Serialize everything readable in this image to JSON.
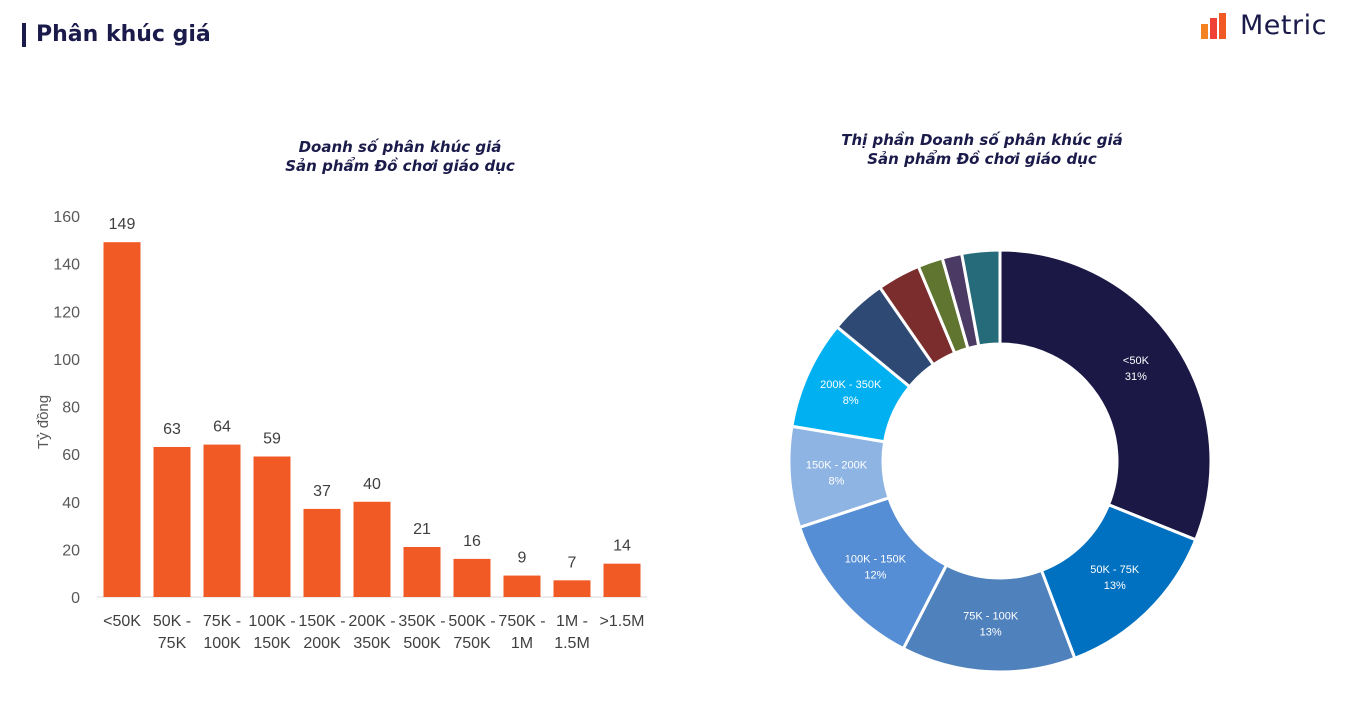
{
  "header": {
    "title": "Phân khúc giá"
  },
  "logo": {
    "text": "Metric",
    "colors": [
      "#f58220",
      "#ef4136",
      "#f15a24"
    ]
  },
  "chart_data": [
    {
      "type": "bar",
      "title_line1": "Doanh số phân khúc giá",
      "title_line2": "Sản phẩm Đồ chơi giáo dục",
      "ylabel": "Tỷ đồng",
      "ylim": [
        0,
        160
      ],
      "yticks": [
        0,
        20,
        40,
        60,
        80,
        100,
        120,
        140,
        160
      ],
      "categories": [
        [
          "<50K"
        ],
        [
          "50K -",
          "75K"
        ],
        [
          "75K -",
          "100K"
        ],
        [
          "100K -",
          "150K"
        ],
        [
          "150K -",
          "200K"
        ],
        [
          "200K -",
          "350K"
        ],
        [
          "350K -",
          "500K"
        ],
        [
          "500K -",
          "750K"
        ],
        [
          "750K -",
          "1M"
        ],
        [
          "1M -",
          "1.5M"
        ],
        [
          ">1.5M"
        ]
      ],
      "values": [
        149,
        63,
        64,
        59,
        37,
        40,
        21,
        16,
        9,
        7,
        14
      ],
      "bar_color": "#f15a24",
      "grid": false
    },
    {
      "type": "pie",
      "subtype": "donut",
      "title_line1": "Thị phần Doanh số phân khúc giá",
      "title_line2": "Sản phẩm Đồ chơi giáo dục",
      "slices": [
        {
          "label": "<50K",
          "pct_label": "31%",
          "value": 31.0,
          "color": "#1b1845",
          "show_label": true
        },
        {
          "label": "50K - 75K",
          "pct_label": "13%",
          "value": 13.1,
          "color": "#0070c0",
          "show_label": true
        },
        {
          "label": "75K - 100K",
          "pct_label": "13%",
          "value": 13.3,
          "color": "#4f81bd",
          "show_label": true
        },
        {
          "label": "100K - 150K",
          "pct_label": "12%",
          "value": 12.3,
          "color": "#558ed5",
          "show_label": true
        },
        {
          "label": "150K - 200K",
          "pct_label": "8%",
          "value": 7.7,
          "color": "#8eb4e3",
          "show_label": true
        },
        {
          "label": "200K - 350K",
          "pct_label": "8%",
          "value": 8.3,
          "color": "#00b0f0",
          "show_label": true
        },
        {
          "label": "350K - 500K",
          "pct_label": "",
          "value": 4.4,
          "color": "#2e4a74",
          "show_label": false
        },
        {
          "label": "500K - 750K",
          "pct_label": "",
          "value": 3.3,
          "color": "#7b2c2c",
          "show_label": false
        },
        {
          "label": "750K - 1M",
          "pct_label": "",
          "value": 1.9,
          "color": "#5f7530",
          "show_label": false
        },
        {
          "label": "1M - 1.5M",
          "pct_label": "",
          "value": 1.5,
          "color": "#4b3b64",
          "show_label": false
        },
        {
          "label": ">1.5M",
          "pct_label": "",
          "value": 2.9,
          "color": "#256b7a",
          "show_label": false
        }
      ]
    }
  ]
}
